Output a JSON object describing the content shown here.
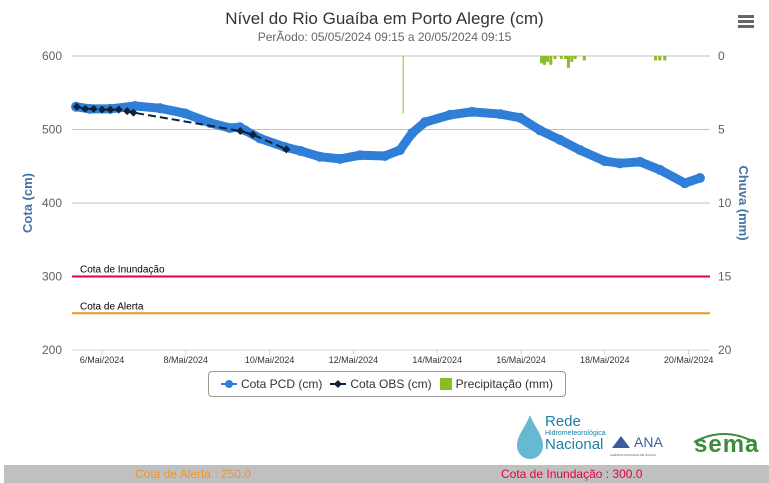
{
  "header": {
    "title": "Nível do Rio Guaíba em Porto Alegre (cm)",
    "subtitle": "PerÃodo: 05/05/2024 09:15 a 20/05/2024 09:15"
  },
  "menu_icon": "hamburger-menu-icon",
  "chart_data": {
    "type": "line",
    "title": "Nível do Rio Guaíba em Porto Alegre (cm)",
    "subtitle": "PerÃodo: 05/05/2024 09:15 a 20/05/2024 09:15",
    "xlabel": "",
    "ylabel": "Cota (cm)",
    "y2label": "Chuva (mm)",
    "xlim": [
      "2024-05-05 09:15",
      "2024-05-20 09:15"
    ],
    "ylim": [
      200,
      600
    ],
    "y2lim": [
      0,
      20
    ],
    "y2_reversed": true,
    "yticks": [
      "200",
      "300",
      "400",
      "500",
      "600"
    ],
    "y2ticks": [
      "0",
      "5",
      "10",
      "15",
      "20"
    ],
    "xticks": [
      "6/Mai/2024",
      "8/Mai/2024",
      "10/Mai/2024",
      "12/Mai/2024",
      "14/Mai/2024",
      "16/Mai/2024",
      "18/Mai/2024",
      "20/Mai/2024"
    ],
    "grid": true,
    "legend_position": "bottom",
    "series": [
      {
        "name": "Cota PCD (cm)",
        "type": "line",
        "color": "#2f7ed8",
        "x_day_of_may": [
          5.38,
          5.71,
          6.19,
          6.79,
          7.38,
          7.98,
          8.58,
          9.05,
          9.29,
          9.41,
          9.77,
          10.37,
          10.73,
          11.2,
          11.68,
          12.16,
          12.75,
          13.11,
          13.4,
          13.71,
          14.31,
          14.83,
          15.5,
          15.98,
          16.45,
          16.93,
          17.41,
          18.0,
          18.36,
          18.84,
          19.32,
          19.91,
          20.27
        ],
        "values": [
          531,
          528,
          528,
          532,
          529,
          522,
          509,
          502,
          503,
          499,
          488,
          476,
          471,
          463,
          460,
          465,
          464,
          472,
          495,
          510,
          520,
          524,
          521,
          516,
          499,
          486,
          472,
          457,
          454,
          456,
          445,
          427,
          434
        ]
      },
      {
        "name": "Cota OBS (cm)",
        "type": "line-dashed",
        "color": "#0d233a",
        "x_day_of_may": [
          5.4,
          5.6,
          5.8,
          6.0,
          6.2,
          6.4,
          6.6,
          6.75,
          9.3,
          9.6,
          10.4
        ],
        "values": [
          531,
          528,
          528,
          527,
          527,
          527,
          525,
          523,
          498,
          493,
          473
        ]
      },
      {
        "name": "Precipitação (mm)",
        "type": "bar",
        "axis": "right",
        "color": "#8bbc21",
        "x_day_of_may": [
          13.2,
          16.48,
          16.55,
          16.62,
          16.7,
          16.8,
          16.95,
          17.05,
          17.12,
          17.2,
          17.28,
          17.5,
          19.2,
          19.3,
          19.42
        ],
        "values": [
          3.9,
          0.5,
          0.6,
          0.4,
          0.6,
          0.2,
          0.2,
          0.2,
          0.8,
          0.4,
          0.2,
          0.3,
          0.3,
          0.3,
          0.3
        ]
      }
    ],
    "plot_lines": [
      {
        "label": "Cota de Inundação",
        "value": 300,
        "color": "#e4003a"
      },
      {
        "label": "Cota de Alerta",
        "value": 250,
        "color": "#f7931e"
      }
    ]
  },
  "legend": [
    {
      "label": "Cota PCD (cm)",
      "color": "#2f7ed8",
      "icon": "circle-marker-icon"
    },
    {
      "label": "Cota OBS (cm)",
      "color": "#0d233a",
      "icon": "diamond-marker-icon"
    },
    {
      "label": "Precipitação (mm)",
      "color": "#8bbc21",
      "icon": "square-marker-icon"
    }
  ],
  "logos": {
    "rede": [
      "Rede",
      "Hidrometeorológica",
      "Nacional"
    ],
    "ana": "ANA",
    "ana_sub": "AGÊNCIA NACIONAL DE ÁGUAS",
    "sema": "sema"
  },
  "footer": {
    "alerta": "Cota de Alerta : 250.0",
    "alerta_color": "#f7931e",
    "inundacao": "Cota de Inundação : 300.0",
    "inundacao_color": "#e4003a"
  }
}
